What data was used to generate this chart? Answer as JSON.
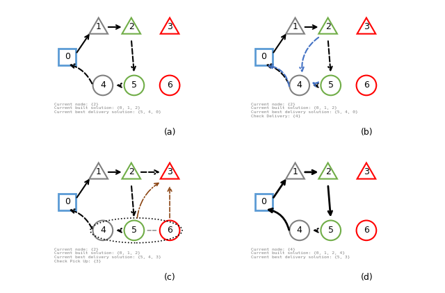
{
  "subplots": [
    "a",
    "b",
    "c",
    "d"
  ],
  "node_colors": {
    "0": "#5b9bd5",
    "1": "#808080",
    "2": "#70ad47",
    "3": "#ff0000",
    "4": "#808080",
    "5": "#70ad47",
    "6": "#ff0000"
  },
  "text_labels": {
    "a": [
      "Current node: {2}",
      "Current built solution: {0, 1, 2}",
      "Current best delivery solution: {5, 4, 0}"
    ],
    "b": [
      "Current node: {2}",
      "Current built solution: {0, 1, 2}",
      "Current best delivery solution: {5, 4, 0}",
      "Check Delivery: {4}"
    ],
    "c": [
      "Current node: {2}",
      "Current built solution: {0, 1, 2}",
      "Current best delivery solution: {5, 4, 3}",
      "Check Pick Up: {3}"
    ],
    "d": [
      "Current node: {4}",
      "Current built solution: {0, 1, 2, 4}",
      "Current best delivery solution: {5, 3}"
    ]
  },
  "background": "#ffffff"
}
